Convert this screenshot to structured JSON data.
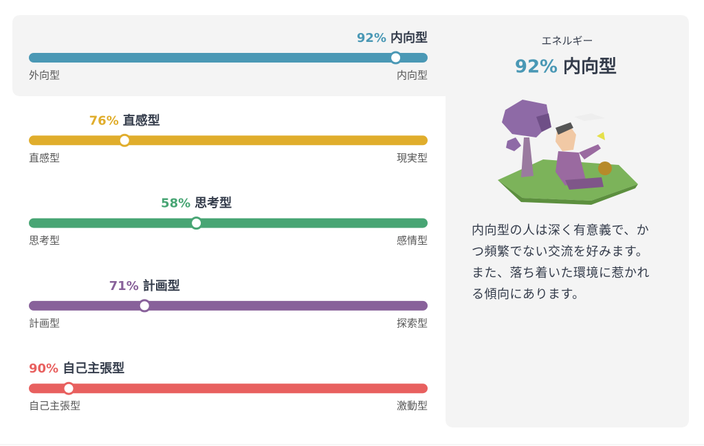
{
  "traits": [
    {
      "value": 92,
      "value_label": "92%",
      "name": "内向型",
      "left_label": "外向型",
      "right_label": "内向型",
      "color": "#4a98b5",
      "side": "right",
      "selected": true
    },
    {
      "value": 76,
      "value_label": "76%",
      "name": "直感型",
      "left_label": "直感型",
      "right_label": "現実型",
      "color": "#e0ad2c",
      "side": "left",
      "selected": false
    },
    {
      "value": 58,
      "value_label": "58%",
      "name": "思考型",
      "left_label": "思考型",
      "right_label": "感情型",
      "color": "#48a574",
      "side": "left",
      "selected": false
    },
    {
      "value": 71,
      "value_label": "71%",
      "name": "計画型",
      "left_label": "計画型",
      "right_label": "探索型",
      "color": "#88619a",
      "side": "left",
      "selected": false
    },
    {
      "value": 90,
      "value_label": "90%",
      "name": "自己主張型",
      "left_label": "自己主張型",
      "right_label": "激動型",
      "color": "#e8605f",
      "side": "left",
      "selected": false
    }
  ],
  "panel": {
    "category": "エネルギー",
    "value": 92,
    "value_label": "92%",
    "trait": "内向型",
    "color": "#4a98b5",
    "description": "内向型の人は深く有意義で、かつ頻繁でない交流を好みます。また、落ち着いた環境に惹かれる傾向にあります。"
  }
}
